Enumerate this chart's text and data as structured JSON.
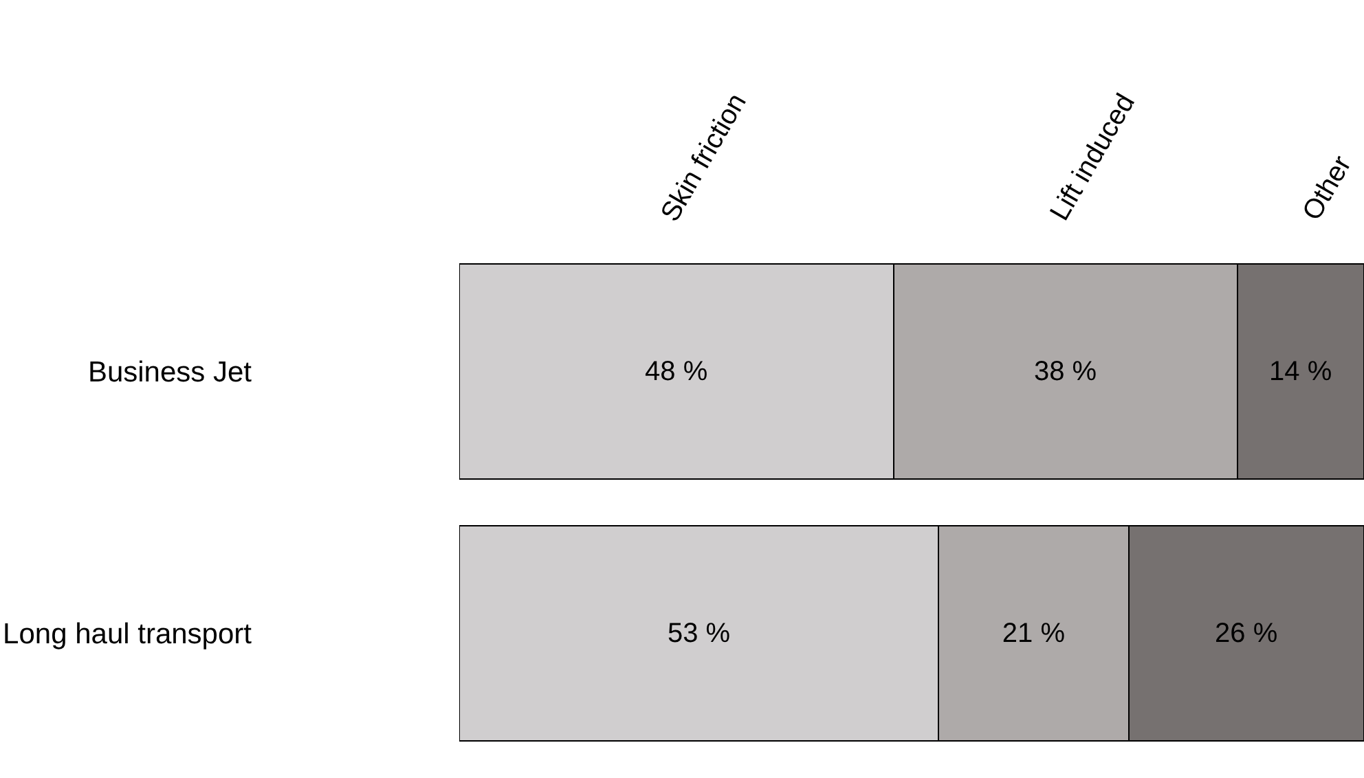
{
  "chart_data": {
    "type": "bar",
    "orientation": "horizontal",
    "stacked": true,
    "categories": [
      "Business Jet",
      "Long haul transport"
    ],
    "xlim": [
      0,
      100
    ],
    "tick_labels": "y",
    "legend": false,
    "series": [
      {
        "name": "Skin friction",
        "color": "#d0cecf",
        "values": [
          48,
          53
        ],
        "value_labels": [
          "48 %",
          "53 %"
        ]
      },
      {
        "name": "Lift induced",
        "color": "#aeaaa9",
        "values": [
          38,
          21
        ],
        "value_labels": [
          "38 %",
          "21 %"
        ]
      },
      {
        "name": "Other",
        "color": "#767170",
        "values": [
          14,
          26
        ],
        "value_labels": [
          "14 %",
          "26 %"
        ]
      }
    ]
  }
}
